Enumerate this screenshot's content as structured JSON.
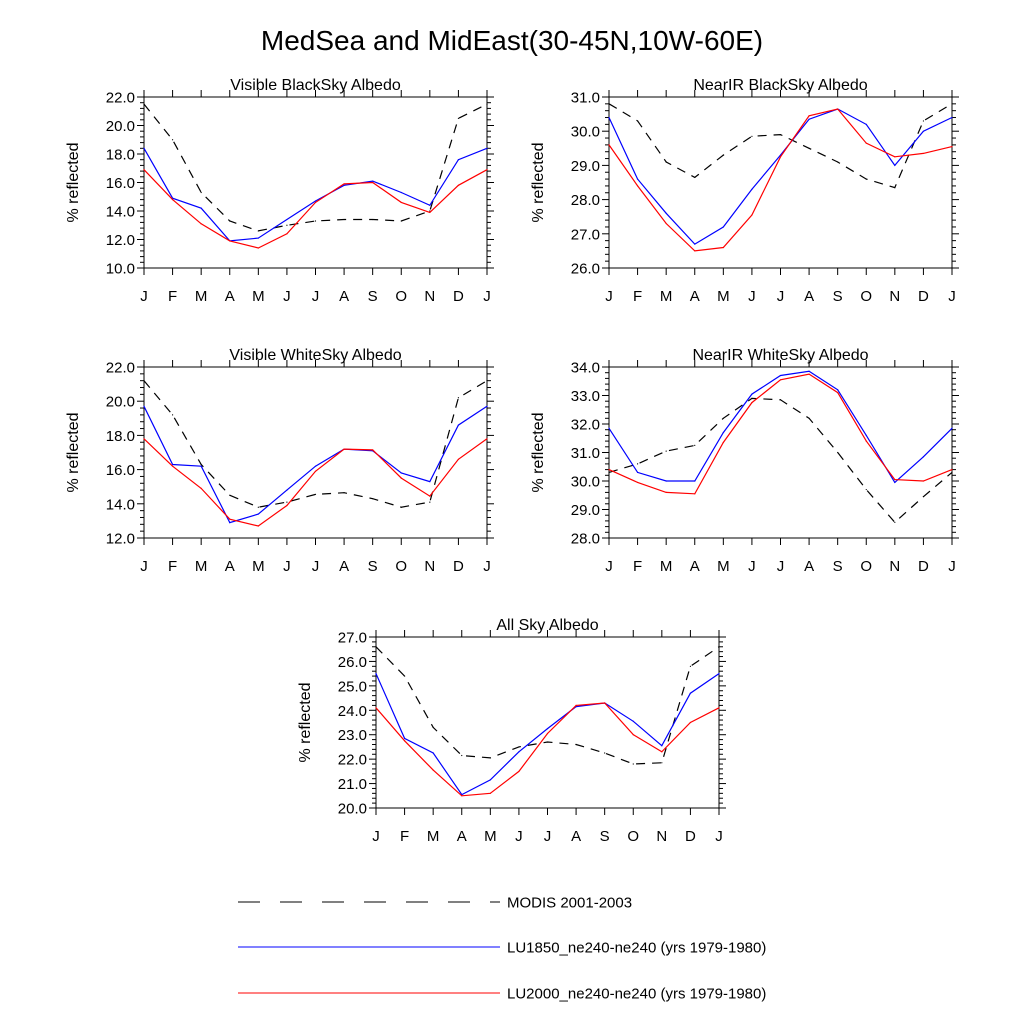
{
  "figure": {
    "title": "MedSea and MidEast(30-45N,10W-60E)"
  },
  "series_styles": [
    {
      "key": "modis",
      "color": "#000000",
      "dash": "9,7"
    },
    {
      "key": "lu1850",
      "color": "#0000ff",
      "dash": ""
    },
    {
      "key": "lu2000",
      "color": "#ff0000",
      "dash": ""
    }
  ],
  "legend": [
    {
      "key": "modis",
      "label": "MODIS 2001-2003"
    },
    {
      "key": "lu1850",
      "label": "LU1850_ne240-ne240 (yrs 1979-1980)"
    },
    {
      "key": "lu2000",
      "label": "LU2000_ne240-ne240 (yrs 1979-1980)"
    }
  ],
  "chart_data": [
    {
      "type": "line",
      "title": "Visible BlackSky Albedo",
      "ylabel": "% reflected",
      "categories": [
        "J",
        "F",
        "M",
        "A",
        "M",
        "J",
        "J",
        "A",
        "S",
        "O",
        "N",
        "D",
        "J"
      ],
      "ylim": [
        10.0,
        22.0
      ],
      "yticks": [
        "10.0",
        "12.0",
        "14.0",
        "16.0",
        "18.0",
        "20.0",
        "22.0"
      ],
      "series": [
        {
          "key": "modis",
          "values": [
            21.5,
            19.0,
            15.3,
            13.3,
            12.6,
            13.0,
            13.3,
            13.4,
            13.4,
            13.3,
            14.0,
            20.5,
            21.5
          ]
        },
        {
          "key": "lu1850",
          "values": [
            18.4,
            14.9,
            14.2,
            11.9,
            12.1,
            13.4,
            14.7,
            15.8,
            16.1,
            15.3,
            14.4,
            17.6,
            18.4
          ]
        },
        {
          "key": "lu2000",
          "values": [
            16.9,
            14.8,
            13.1,
            11.9,
            11.4,
            12.4,
            14.6,
            15.9,
            16.0,
            14.6,
            13.9,
            15.8,
            16.9
          ]
        }
      ]
    },
    {
      "type": "line",
      "title": "NearIR BlackSky Albedo",
      "ylabel": "% reflected",
      "categories": [
        "J",
        "F",
        "M",
        "A",
        "M",
        "J",
        "J",
        "A",
        "S",
        "O",
        "N",
        "D",
        "J"
      ],
      "ylim": [
        26.0,
        31.0
      ],
      "yticks": [
        "26.0",
        "27.0",
        "28.0",
        "29.0",
        "30.0",
        "31.0"
      ],
      "series": [
        {
          "key": "modis",
          "values": [
            30.8,
            30.3,
            29.1,
            28.65,
            29.3,
            29.85,
            29.9,
            29.5,
            29.1,
            28.6,
            28.35,
            30.3,
            30.8
          ]
        },
        {
          "key": "lu1850",
          "values": [
            30.4,
            28.6,
            27.6,
            26.7,
            27.2,
            28.3,
            29.3,
            30.35,
            30.65,
            30.2,
            29.0,
            30.0,
            30.4
          ]
        },
        {
          "key": "lu2000",
          "values": [
            29.6,
            28.4,
            27.3,
            26.5,
            26.6,
            27.55,
            29.25,
            30.45,
            30.65,
            29.65,
            29.25,
            29.35,
            29.55
          ]
        }
      ]
    },
    {
      "type": "line",
      "title": "Visible WhiteSky Albedo",
      "ylabel": "% reflected",
      "categories": [
        "J",
        "F",
        "M",
        "A",
        "M",
        "J",
        "J",
        "A",
        "S",
        "O",
        "N",
        "D",
        "J"
      ],
      "ylim": [
        12.0,
        22.0
      ],
      "yticks": [
        "12.0",
        "14.0",
        "16.0",
        "18.0",
        "20.0",
        "22.0"
      ],
      "series": [
        {
          "key": "modis",
          "values": [
            21.2,
            19.2,
            16.3,
            14.5,
            13.8,
            14.1,
            14.55,
            14.65,
            14.3,
            13.8,
            14.1,
            20.2,
            21.2
          ]
        },
        {
          "key": "lu1850",
          "values": [
            19.7,
            16.3,
            16.2,
            12.9,
            13.4,
            14.8,
            16.2,
            17.2,
            17.1,
            15.8,
            15.3,
            18.6,
            19.7
          ]
        },
        {
          "key": "lu2000",
          "values": [
            17.8,
            16.2,
            14.9,
            13.1,
            12.7,
            13.9,
            15.9,
            17.2,
            17.15,
            15.5,
            14.45,
            16.6,
            17.8
          ]
        }
      ]
    },
    {
      "type": "line",
      "title": "NearIR WhiteSky Albedo",
      "ylabel": "% reflected",
      "categories": [
        "J",
        "F",
        "M",
        "A",
        "M",
        "J",
        "J",
        "A",
        "S",
        "O",
        "N",
        "D",
        "J"
      ],
      "ylim": [
        28.0,
        34.0
      ],
      "yticks": [
        "28.0",
        "29.0",
        "30.0",
        "31.0",
        "32.0",
        "33.0",
        "34.0"
      ],
      "series": [
        {
          "key": "modis",
          "values": [
            30.3,
            30.6,
            31.05,
            31.25,
            32.2,
            32.9,
            32.85,
            32.2,
            31.0,
            29.7,
            28.55,
            29.45,
            30.3
          ]
        },
        {
          "key": "lu1850",
          "values": [
            31.85,
            30.3,
            30.0,
            30.0,
            31.7,
            33.05,
            33.7,
            33.85,
            33.2,
            31.6,
            29.95,
            30.85,
            31.85
          ]
        },
        {
          "key": "lu2000",
          "values": [
            30.4,
            29.95,
            29.6,
            29.55,
            31.35,
            32.75,
            33.55,
            33.75,
            33.1,
            31.4,
            30.05,
            30.0,
            30.4
          ]
        }
      ]
    },
    {
      "type": "line",
      "title": "All Sky Albedo",
      "ylabel": "% reflected",
      "categories": [
        "J",
        "F",
        "M",
        "A",
        "M",
        "J",
        "J",
        "A",
        "S",
        "O",
        "N",
        "D",
        "J"
      ],
      "ylim": [
        20.0,
        27.0
      ],
      "yticks": [
        "20.0",
        "21.0",
        "22.0",
        "23.0",
        "24.0",
        "25.0",
        "26.0",
        "27.0"
      ],
      "series": [
        {
          "key": "modis",
          "values": [
            26.6,
            25.4,
            23.3,
            22.15,
            22.05,
            22.5,
            22.7,
            22.6,
            22.25,
            21.8,
            21.85,
            25.8,
            26.6
          ]
        },
        {
          "key": "lu1850",
          "values": [
            25.5,
            22.85,
            22.25,
            20.55,
            21.15,
            22.3,
            23.25,
            24.15,
            24.3,
            23.55,
            22.55,
            24.7,
            25.5
          ]
        },
        {
          "key": "lu2000",
          "values": [
            24.1,
            22.75,
            21.55,
            20.5,
            20.6,
            21.5,
            23.05,
            24.2,
            24.3,
            23.0,
            22.3,
            23.5,
            24.1
          ]
        }
      ]
    }
  ]
}
